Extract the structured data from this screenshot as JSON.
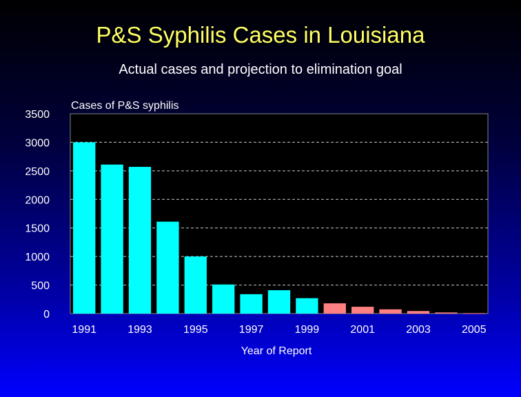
{
  "slide": {
    "title": "P&S Syphilis Cases in Louisiana",
    "subtitle": "Actual cases and projection to elimination goal"
  },
  "chart_data": {
    "type": "bar",
    "ylabel": "Cases of P&S syphilis",
    "xlabel": "Year of Report",
    "ylim": [
      0,
      3500
    ],
    "yticks": [
      0,
      500,
      1000,
      1500,
      2000,
      2500,
      3000,
      3500
    ],
    "categories": [
      "1991",
      "1992",
      "1993",
      "1994",
      "1995",
      "1996",
      "1997",
      "1998",
      "1999",
      "2000",
      "2001",
      "2002",
      "2003",
      "2004",
      "2005"
    ],
    "xtick_labels": [
      "1991",
      "",
      "1993",
      "",
      "1995",
      "",
      "1997",
      "",
      "1999",
      "",
      "2001",
      "",
      "2003",
      "",
      "2005"
    ],
    "series": [
      {
        "values": [
          3000,
          2610,
          2570,
          1610,
          1000,
          510,
          340,
          410,
          270,
          null,
          null,
          null,
          null,
          null,
          null
        ],
        "color": "#00ffff"
      },
      {
        "values": [
          null,
          null,
          null,
          null,
          null,
          null,
          null,
          null,
          null,
          180,
          120,
          75,
          45,
          20,
          8
        ],
        "color": "#ff8080"
      }
    ],
    "grid": true,
    "plot_background": "#000000"
  }
}
